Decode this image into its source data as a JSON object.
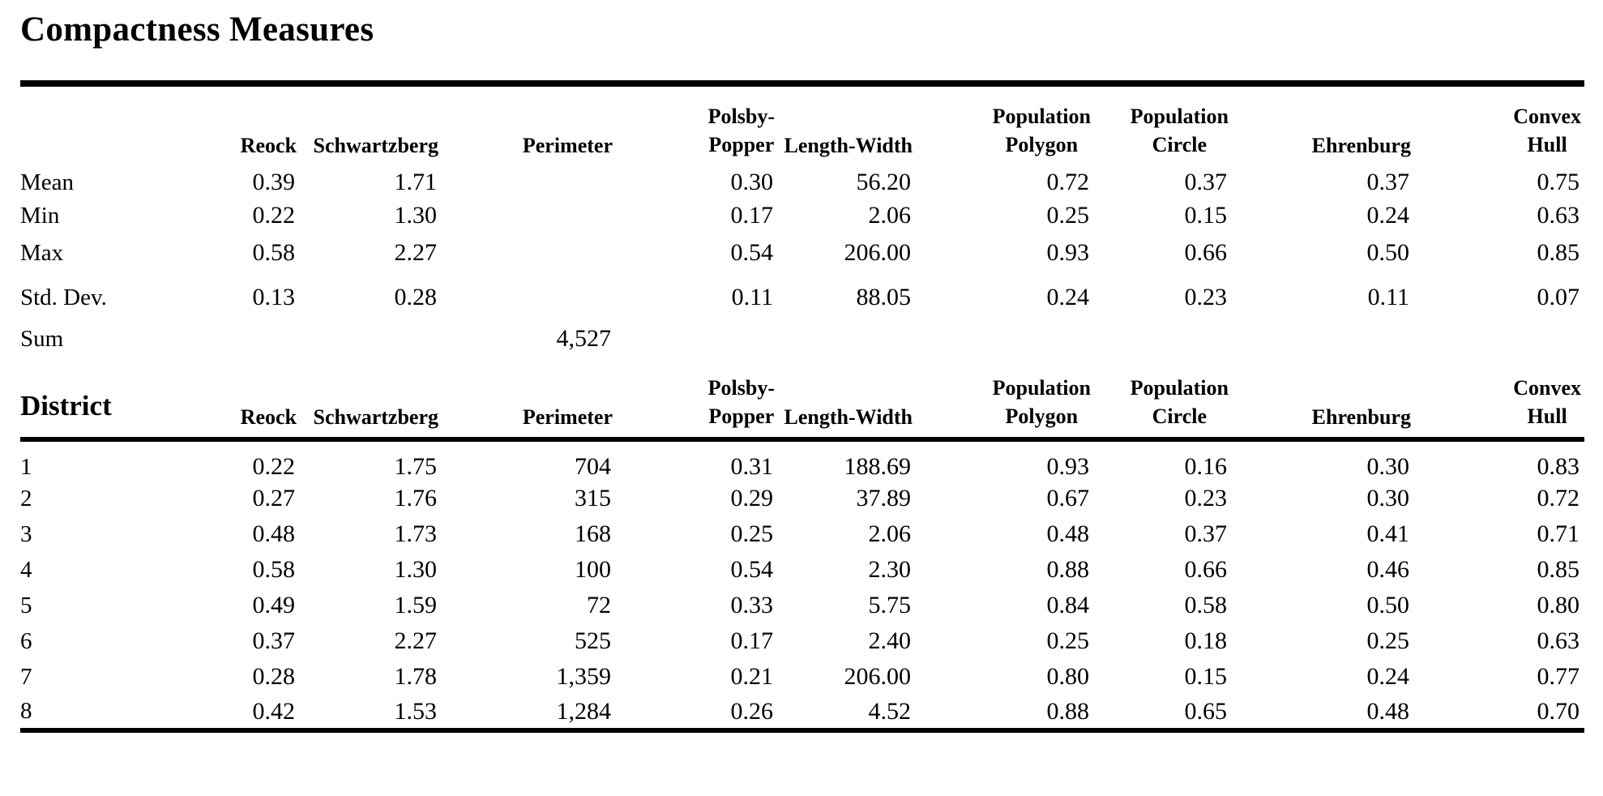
{
  "title": "Compactness Measures",
  "headers": {
    "reock": "Reock",
    "schwartzberg": "Schwartzberg",
    "perimeter": "Perimeter",
    "polsby_popper": {
      "line1": "Polsby-",
      "line2": "Popper"
    },
    "length_width": "Length-Width",
    "population_polygon": {
      "line1": "Population",
      "line2": "Polygon"
    },
    "population_circle": {
      "line1": "Population",
      "line2": "Circle"
    },
    "ehrenburg": "Ehrenburg",
    "convex_hull": {
      "line1": "Convex",
      "line2": "Hull"
    }
  },
  "summary": {
    "rows": [
      {
        "label": "Mean",
        "reock": "0.39",
        "schwartzberg": "1.71",
        "perimeter": "",
        "polsby_popper": "0.30",
        "length_width": "56.20",
        "population_polygon": "0.72",
        "population_circle": "0.37",
        "ehrenburg": "0.37",
        "convex_hull": "0.75"
      },
      {
        "label": "Min",
        "reock": "0.22",
        "schwartzberg": "1.30",
        "perimeter": "",
        "polsby_popper": "0.17",
        "length_width": "2.06",
        "population_polygon": "0.25",
        "population_circle": "0.15",
        "ehrenburg": "0.24",
        "convex_hull": "0.63"
      },
      {
        "label": "Max",
        "reock": "0.58",
        "schwartzberg": "2.27",
        "perimeter": "",
        "polsby_popper": "0.54",
        "length_width": "206.00",
        "population_polygon": "0.93",
        "population_circle": "0.66",
        "ehrenburg": "0.50",
        "convex_hull": "0.85"
      },
      {
        "label": "Std. Dev.",
        "reock": "0.13",
        "schwartzberg": "0.28",
        "perimeter": "",
        "polsby_popper": "0.11",
        "length_width": "88.05",
        "population_polygon": "0.24",
        "population_circle": "0.23",
        "ehrenburg": "0.11",
        "convex_hull": "0.07"
      },
      {
        "label": "Sum",
        "reock": "",
        "schwartzberg": "",
        "perimeter": "4,527",
        "polsby_popper": "",
        "length_width": "",
        "population_polygon": "",
        "population_circle": "",
        "ehrenburg": "",
        "convex_hull": ""
      }
    ]
  },
  "district": {
    "header_label": "District",
    "rows": [
      {
        "label": "1",
        "reock": "0.22",
        "schwartzberg": "1.75",
        "perimeter": "704",
        "polsby_popper": "0.31",
        "length_width": "188.69",
        "population_polygon": "0.93",
        "population_circle": "0.16",
        "ehrenburg": "0.30",
        "convex_hull": "0.83"
      },
      {
        "label": "2",
        "reock": "0.27",
        "schwartzberg": "1.76",
        "perimeter": "315",
        "polsby_popper": "0.29",
        "length_width": "37.89",
        "population_polygon": "0.67",
        "population_circle": "0.23",
        "ehrenburg": "0.30",
        "convex_hull": "0.72"
      },
      {
        "label": "3",
        "reock": "0.48",
        "schwartzberg": "1.73",
        "perimeter": "168",
        "polsby_popper": "0.25",
        "length_width": "2.06",
        "population_polygon": "0.48",
        "population_circle": "0.37",
        "ehrenburg": "0.41",
        "convex_hull": "0.71"
      },
      {
        "label": "4",
        "reock": "0.58",
        "schwartzberg": "1.30",
        "perimeter": "100",
        "polsby_popper": "0.54",
        "length_width": "2.30",
        "population_polygon": "0.88",
        "population_circle": "0.66",
        "ehrenburg": "0.46",
        "convex_hull": "0.85"
      },
      {
        "label": "5",
        "reock": "0.49",
        "schwartzberg": "1.59",
        "perimeter": "72",
        "polsby_popper": "0.33",
        "length_width": "5.75",
        "population_polygon": "0.84",
        "population_circle": "0.58",
        "ehrenburg": "0.50",
        "convex_hull": "0.80"
      },
      {
        "label": "6",
        "reock": "0.37",
        "schwartzberg": "2.27",
        "perimeter": "525",
        "polsby_popper": "0.17",
        "length_width": "2.40",
        "population_polygon": "0.25",
        "population_circle": "0.18",
        "ehrenburg": "0.25",
        "convex_hull": "0.63"
      },
      {
        "label": "7",
        "reock": "0.28",
        "schwartzberg": "1.78",
        "perimeter": "1,359",
        "polsby_popper": "0.21",
        "length_width": "206.00",
        "population_polygon": "0.80",
        "population_circle": "0.15",
        "ehrenburg": "0.24",
        "convex_hull": "0.77"
      },
      {
        "label": "8",
        "reock": "0.42",
        "schwartzberg": "1.53",
        "perimeter": "1,284",
        "polsby_popper": "0.26",
        "length_width": "4.52",
        "population_polygon": "0.88",
        "population_circle": "0.65",
        "ehrenburg": "0.48",
        "convex_hull": "0.70"
      }
    ]
  }
}
